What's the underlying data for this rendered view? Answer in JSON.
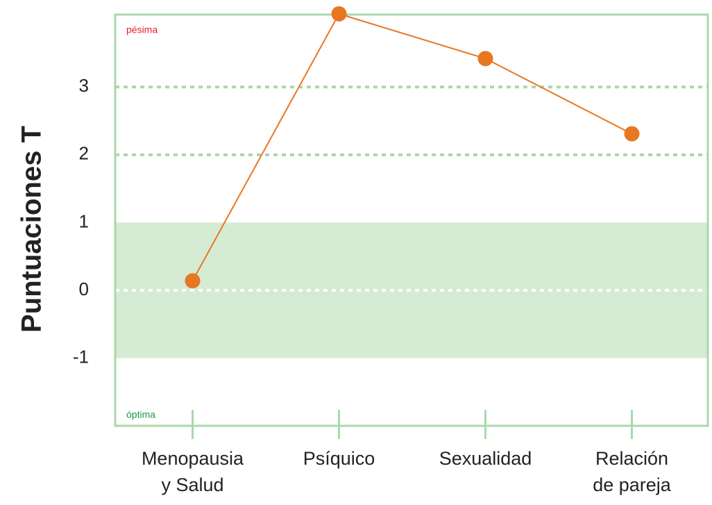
{
  "chart_data": {
    "type": "line",
    "y_label": "Puntuaciones T",
    "categories": [
      [
        "Menopausia",
        "y Salud"
      ],
      [
        "Psíquico"
      ],
      [
        "Sexualidad"
      ],
      [
        "Relación",
        "de pareja"
      ]
    ],
    "values": [
      0.14,
      4.08,
      3.42,
      2.31
    ],
    "color": "#e87722",
    "ylim": [
      -2,
      4.1
    ],
    "yticks": [
      -1,
      0,
      1,
      2,
      3
    ],
    "normal_range": [
      -1,
      1
    ],
    "normal_range_color": "#d6ebd3",
    "reference_lines": [
      0,
      2,
      3
    ],
    "frame_color": "#a9d8a9",
    "annotations": [
      {
        "text": "pésima",
        "color": "#e8202a"
      },
      {
        "text": "óptima",
        "color": "#1a9a4a"
      }
    ]
  }
}
